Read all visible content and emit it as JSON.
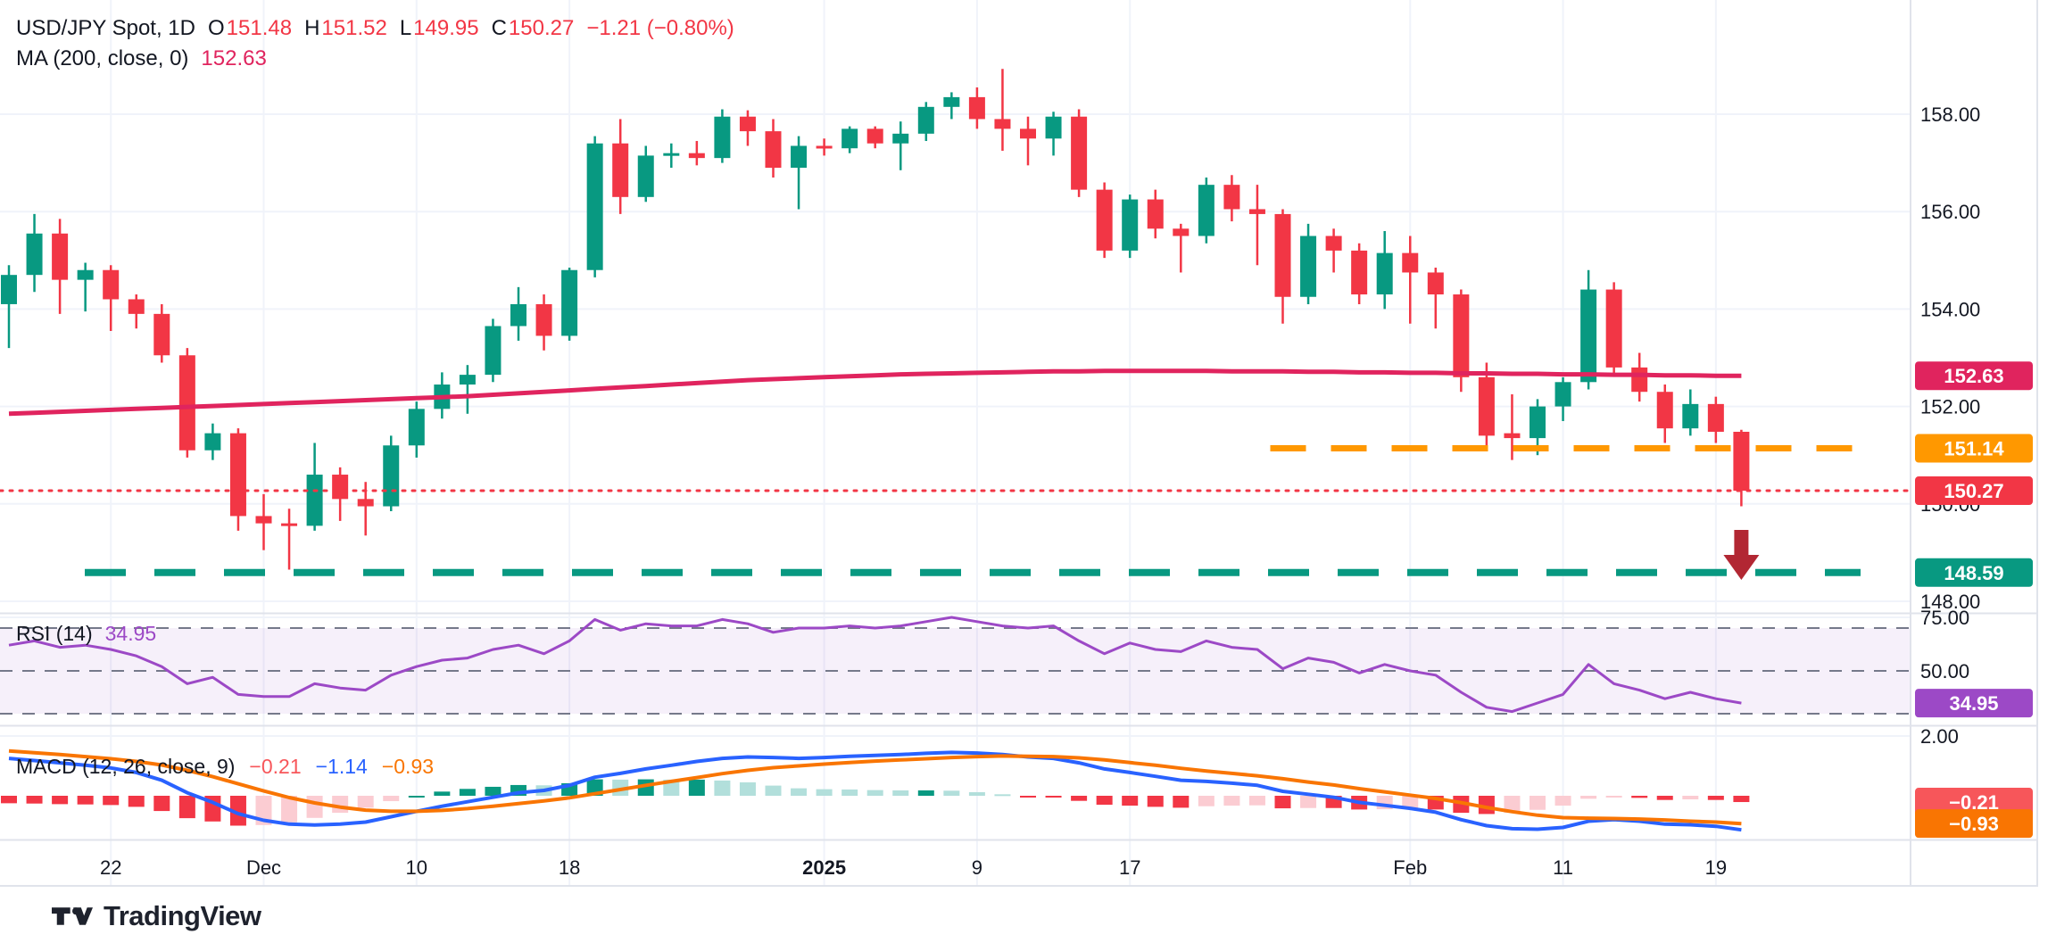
{
  "header": {
    "symbol": "USD/JPY Spot, 1D",
    "o_label": "O",
    "o_value": "151.48",
    "h_label": "H",
    "h_value": "151.52",
    "l_label": "L",
    "l_value": "149.95",
    "c_label": "C",
    "c_value": "150.27",
    "change": "−1.21 (−0.80%)"
  },
  "indicators": {
    "ma": {
      "label": "MA (200, close, 0)",
      "value": "152.63"
    },
    "rsi": {
      "label": "RSI (14)",
      "value": "34.95"
    },
    "macd": {
      "label": "MACD (12, 26, close, 9)",
      "hist_value": "−0.21",
      "macd_value": "−1.14",
      "signal_value": "−0.93"
    }
  },
  "colors": {
    "up": "#089981",
    "down": "#f23645",
    "up_faded": "#b2dfdb",
    "down_faded": "#fbccd2",
    "ma": "#e0245e",
    "rsi": "#9c49c6",
    "rsi_band": "rgba(124,45,182,0.07)",
    "band_dash": "#75798a",
    "macd_line": "#2962ff",
    "signal_line": "#f97502",
    "resistance": "#ff9800",
    "support": "#089981",
    "price_line": "#f23645",
    "arrow": "#b22733",
    "hist_badge": "#f7565a",
    "signal_badge": "#f97502",
    "text": "#131722",
    "grid": "#f0f3fa",
    "separator": "#e0e3eb",
    "brand": "#1e222d"
  },
  "axes": {
    "price_ticks": [
      {
        "label": "158.00",
        "price": 158
      },
      {
        "label": "156.00",
        "price": 156
      },
      {
        "label": "154.00",
        "price": 154
      },
      {
        "label": "152.00",
        "price": 152
      },
      {
        "label": "150.00",
        "price": 150
      },
      {
        "label": "148.00",
        "price": 148
      }
    ],
    "rsi_ticks": [
      {
        "label": "75.00",
        "value": 75
      },
      {
        "label": "50.00",
        "value": 50
      }
    ],
    "macd_ticks": [
      {
        "label": "2.00",
        "value": 2
      }
    ]
  },
  "badges": {
    "price": [
      {
        "label": "152.63",
        "price": 152.63,
        "color": "#e0245e"
      },
      {
        "label": "151.14",
        "price": 151.14,
        "color": "#ff9800"
      },
      {
        "label": "150.27",
        "price": 150.27,
        "color": "#f23645"
      },
      {
        "label": "148.59",
        "price": 148.59,
        "color": "#089981"
      }
    ],
    "rsi": [
      {
        "label": "34.95",
        "value": 34.95,
        "color": "#9c49c6"
      }
    ],
    "macd": [
      {
        "label": "−0.21",
        "value": -0.21,
        "color": "#f7565a"
      },
      {
        "label": "−0.93",
        "value": -0.93,
        "color": "#f97502"
      }
    ]
  },
  "time_axis": {
    "labels": [
      {
        "text": "22",
        "i": 4
      },
      {
        "text": "Dec",
        "i": 10
      },
      {
        "text": "10",
        "i": 16
      },
      {
        "text": "18",
        "i": 22
      },
      {
        "text": "2025",
        "i": 32,
        "bold": true
      },
      {
        "text": "9",
        "i": 38
      },
      {
        "text": "17",
        "i": 44
      },
      {
        "text": "Feb",
        "i": 55
      },
      {
        "text": "11",
        "i": 61
      },
      {
        "text": "19",
        "i": 67
      }
    ]
  },
  "footer": {
    "brand": "TradingView"
  },
  "chart_data": {
    "type": "candlestick",
    "title": "USD/JPY Spot, 1D",
    "ylim_main": [
      147.76,
      160.34
    ],
    "legend_position": "top-left",
    "grid": true,
    "dates": [
      "Nov 18",
      "Nov 19",
      "Nov 20",
      "Nov 21",
      "Nov 22",
      "Nov 25",
      "Nov 26",
      "Nov 27",
      "Nov 28",
      "Nov 29",
      "Dec 2",
      "Dec 3",
      "Dec 4",
      "Dec 5",
      "Dec 6",
      "Dec 9",
      "Dec 10",
      "Dec 11",
      "Dec 12",
      "Dec 13",
      "Dec 16",
      "Dec 17",
      "Dec 18",
      "Dec 19",
      "Dec 20",
      "Dec 23",
      "Dec 24",
      "Dec 25",
      "Dec 26",
      "Dec 27",
      "Dec 30",
      "Dec 31",
      "Jan 1",
      "Jan 2",
      "Jan 3",
      "Jan 6",
      "Jan 7",
      "Jan 8",
      "Jan 9",
      "Jan 10",
      "Jan 13",
      "Jan 14",
      "Jan 15",
      "Jan 16",
      "Jan 17",
      "Jan 20",
      "Jan 21",
      "Jan 22",
      "Jan 23",
      "Jan 24",
      "Jan 27",
      "Jan 28",
      "Jan 29",
      "Jan 30",
      "Jan 31",
      "Feb 3",
      "Feb 4",
      "Feb 5",
      "Feb 6",
      "Feb 7",
      "Feb 10",
      "Feb 11",
      "Feb 12",
      "Feb 13",
      "Feb 14",
      "Feb 17",
      "Feb 18",
      "Feb 19",
      "Feb 20"
    ],
    "ohlc": [
      [
        154.1,
        154.9,
        153.2,
        154.7
      ],
      [
        154.7,
        155.95,
        154.35,
        155.55
      ],
      [
        155.55,
        155.85,
        153.9,
        154.6
      ],
      [
        154.6,
        154.95,
        153.95,
        154.8
      ],
      [
        154.8,
        154.9,
        153.55,
        154.2
      ],
      [
        154.2,
        154.3,
        153.6,
        153.9
      ],
      [
        153.9,
        154.1,
        152.9,
        153.05
      ],
      [
        153.05,
        153.2,
        150.95,
        151.1
      ],
      [
        151.1,
        151.65,
        150.9,
        151.45
      ],
      [
        151.45,
        151.55,
        149.45,
        149.75
      ],
      [
        149.75,
        150.2,
        149.05,
        149.6
      ],
      [
        149.6,
        149.9,
        148.65,
        149.55
      ],
      [
        149.55,
        151.25,
        149.45,
        150.6
      ],
      [
        150.6,
        150.75,
        149.65,
        150.1
      ],
      [
        150.1,
        150.45,
        149.35,
        149.95
      ],
      [
        149.95,
        151.4,
        149.85,
        151.2
      ],
      [
        151.2,
        152.1,
        150.95,
        151.95
      ],
      [
        151.95,
        152.7,
        151.75,
        152.45
      ],
      [
        152.45,
        152.85,
        151.85,
        152.65
      ],
      [
        152.65,
        153.8,
        152.5,
        153.65
      ],
      [
        153.65,
        154.45,
        153.35,
        154.1
      ],
      [
        154.1,
        154.3,
        153.15,
        153.45
      ],
      [
        153.45,
        154.85,
        153.35,
        154.8
      ],
      [
        154.8,
        157.55,
        154.65,
        157.4
      ],
      [
        157.4,
        157.9,
        155.95,
        156.3
      ],
      [
        156.3,
        157.35,
        156.2,
        157.15
      ],
      [
        157.15,
        157.4,
        156.9,
        157.2
      ],
      [
        157.2,
        157.45,
        156.95,
        157.1
      ],
      [
        157.1,
        158.1,
        157.0,
        157.95
      ],
      [
        157.95,
        158.08,
        157.35,
        157.65
      ],
      [
        157.65,
        157.9,
        156.7,
        156.9
      ],
      [
        156.9,
        157.55,
        156.05,
        157.35
      ],
      [
        157.35,
        157.5,
        157.15,
        157.3
      ],
      [
        157.3,
        157.75,
        157.2,
        157.7
      ],
      [
        157.7,
        157.75,
        157.3,
        157.4
      ],
      [
        157.4,
        157.85,
        156.85,
        157.6
      ],
      [
        157.6,
        158.25,
        157.45,
        158.15
      ],
      [
        158.15,
        158.45,
        157.9,
        158.35
      ],
      [
        158.35,
        158.55,
        157.7,
        157.9
      ],
      [
        157.9,
        158.93,
        157.25,
        157.7
      ],
      [
        157.7,
        157.95,
        156.95,
        157.5
      ],
      [
        157.5,
        158.05,
        157.15,
        157.95
      ],
      [
        157.95,
        158.1,
        156.3,
        156.45
      ],
      [
        156.45,
        156.6,
        155.05,
        155.2
      ],
      [
        155.2,
        156.35,
        155.05,
        156.25
      ],
      [
        156.25,
        156.45,
        155.45,
        155.65
      ],
      [
        155.65,
        155.75,
        154.75,
        155.5
      ],
      [
        155.5,
        156.7,
        155.35,
        156.55
      ],
      [
        156.55,
        156.75,
        155.8,
        156.05
      ],
      [
        156.05,
        156.55,
        154.9,
        155.95
      ],
      [
        155.95,
        156.05,
        153.7,
        154.25
      ],
      [
        154.25,
        155.75,
        154.1,
        155.5
      ],
      [
        155.5,
        155.65,
        154.75,
        155.2
      ],
      [
        155.2,
        155.35,
        154.1,
        154.3
      ],
      [
        154.3,
        155.6,
        154.0,
        155.15
      ],
      [
        155.15,
        155.5,
        153.7,
        154.75
      ],
      [
        154.75,
        154.85,
        153.6,
        154.3
      ],
      [
        154.3,
        154.4,
        152.3,
        152.6
      ],
      [
        152.6,
        152.9,
        151.2,
        151.4
      ],
      [
        151.45,
        152.25,
        150.9,
        151.35
      ],
      [
        151.35,
        152.15,
        151.0,
        152.0
      ],
      [
        152.0,
        152.6,
        151.7,
        152.5
      ],
      [
        152.5,
        154.8,
        152.35,
        154.4
      ],
      [
        154.4,
        154.55,
        152.65,
        152.8
      ],
      [
        152.8,
        153.1,
        152.1,
        152.3
      ],
      [
        152.3,
        152.45,
        151.25,
        151.55
      ],
      [
        151.55,
        152.35,
        151.4,
        152.05
      ],
      [
        152.05,
        152.2,
        151.25,
        151.48
      ],
      [
        151.48,
        151.52,
        149.95,
        150.27
      ]
    ],
    "ma200": [
      151.85,
      151.87,
      151.89,
      151.91,
      151.93,
      151.95,
      151.97,
      151.99,
      152.01,
      152.03,
      152.05,
      152.07,
      152.09,
      152.11,
      152.13,
      152.15,
      152.17,
      152.19,
      152.21,
      152.24,
      152.27,
      152.3,
      152.33,
      152.36,
      152.39,
      152.42,
      152.45,
      152.48,
      152.51,
      152.54,
      152.56,
      152.58,
      152.6,
      152.62,
      152.64,
      152.66,
      152.67,
      152.68,
      152.69,
      152.7,
      152.71,
      152.72,
      152.72,
      152.73,
      152.73,
      152.73,
      152.73,
      152.73,
      152.72,
      152.72,
      152.72,
      152.71,
      152.71,
      152.7,
      152.7,
      152.69,
      152.69,
      152.68,
      152.68,
      152.67,
      152.67,
      152.66,
      152.66,
      152.65,
      152.65,
      152.64,
      152.64,
      152.63,
      152.63
    ],
    "rsi": {
      "band": {
        "upper": 70,
        "middle": 50,
        "lower": 30
      },
      "values": [
        62,
        64,
        61,
        62,
        60,
        57,
        52,
        44,
        47,
        39,
        38,
        38,
        44,
        42,
        41,
        48,
        52,
        55,
        56,
        60,
        62,
        58,
        64,
        74,
        69,
        72,
        71,
        71,
        74,
        72,
        68,
        70,
        70,
        71,
        70,
        71,
        73,
        75,
        73,
        71,
        70,
        71,
        64,
        58,
        63,
        60,
        59,
        64,
        61,
        60,
        51,
        56,
        54,
        49,
        53,
        50,
        48,
        40,
        33,
        31,
        35,
        39,
        53,
        44,
        41,
        37,
        40,
        37,
        34.95
      ]
    },
    "macd": {
      "macd": [
        1.25,
        1.18,
        1.1,
        1.02,
        0.93,
        0.78,
        0.52,
        0.1,
        -0.22,
        -0.6,
        -0.82,
        -0.95,
        -0.98,
        -0.95,
        -0.88,
        -0.7,
        -0.52,
        -0.35,
        -0.2,
        -0.05,
        0.1,
        0.18,
        0.35,
        0.62,
        0.75,
        0.9,
        1.02,
        1.15,
        1.25,
        1.3,
        1.28,
        1.25,
        1.28,
        1.32,
        1.35,
        1.38,
        1.42,
        1.45,
        1.43,
        1.38,
        1.3,
        1.25,
        1.1,
        0.9,
        0.78,
        0.65,
        0.52,
        0.48,
        0.42,
        0.35,
        0.15,
        0.05,
        -0.05,
        -0.22,
        -0.32,
        -0.42,
        -0.55,
        -0.8,
        -1.0,
        -1.1,
        -1.12,
        -1.06,
        -0.85,
        -0.8,
        -0.85,
        -0.95,
        -0.97,
        -1.02,
        -1.14
      ],
      "signal": [
        1.5,
        1.44,
        1.38,
        1.31,
        1.24,
        1.15,
        1.03,
        0.85,
        0.64,
        0.4,
        0.16,
        -0.06,
        -0.24,
        -0.38,
        -0.48,
        -0.52,
        -0.52,
        -0.49,
        -0.43,
        -0.35,
        -0.26,
        -0.17,
        -0.07,
        0.07,
        0.21,
        0.35,
        0.48,
        0.61,
        0.74,
        0.85,
        0.94,
        1.0,
        1.06,
        1.11,
        1.16,
        1.2,
        1.24,
        1.28,
        1.31,
        1.33,
        1.32,
        1.31,
        1.27,
        1.2,
        1.11,
        1.02,
        0.92,
        0.83,
        0.75,
        0.67,
        0.57,
        0.46,
        0.36,
        0.24,
        0.13,
        0.02,
        -0.09,
        -0.23,
        -0.39,
        -0.53,
        -0.65,
        -0.73,
        -0.75,
        -0.76,
        -0.78,
        -0.81,
        -0.85,
        -0.88,
        -0.93
      ],
      "hist": [
        -0.25,
        -0.26,
        -0.28,
        -0.29,
        -0.31,
        -0.37,
        -0.51,
        -0.75,
        -0.86,
        -1.0,
        -0.98,
        -0.89,
        -0.74,
        -0.57,
        -0.4,
        -0.18,
        0.0,
        0.14,
        0.23,
        0.3,
        0.36,
        0.35,
        0.42,
        0.55,
        0.54,
        0.55,
        0.54,
        0.54,
        0.51,
        0.45,
        0.34,
        0.25,
        0.22,
        0.21,
        0.19,
        0.18,
        0.18,
        0.17,
        0.12,
        0.05,
        -0.02,
        -0.06,
        -0.17,
        -0.3,
        -0.33,
        -0.37,
        -0.4,
        -0.35,
        -0.33,
        -0.32,
        -0.42,
        -0.41,
        -0.41,
        -0.46,
        -0.45,
        -0.44,
        -0.46,
        -0.57,
        -0.61,
        -0.57,
        -0.47,
        -0.33,
        -0.1,
        -0.04,
        -0.07,
        -0.14,
        -0.12,
        -0.14,
        -0.21
      ]
    },
    "annotations": {
      "resistance_line": {
        "price": 151.14,
        "style": "dashed",
        "color": "#ff9800",
        "start_index": 50
      },
      "support_line": {
        "price": 148.59,
        "style": "dashed",
        "color": "#089981"
      },
      "last_price_line": {
        "price": 150.27,
        "style": "dotted",
        "color": "#f23645"
      },
      "down_arrow": {
        "index": 68,
        "color": "#b22733"
      }
    }
  }
}
